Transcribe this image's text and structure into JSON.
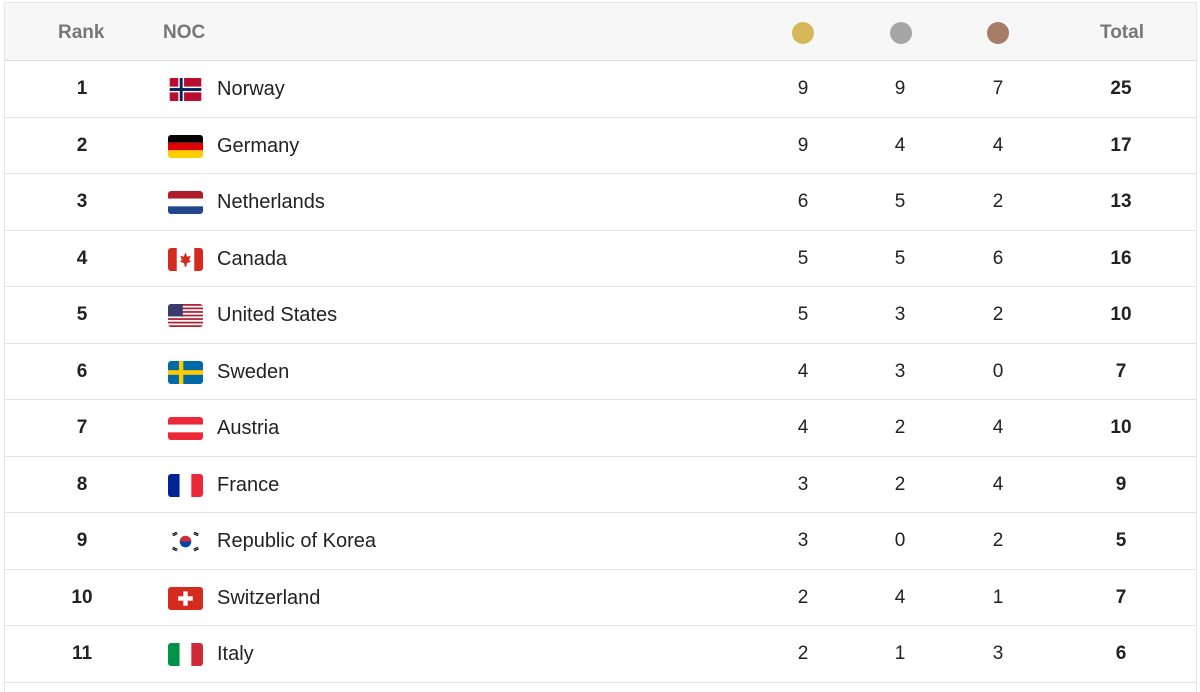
{
  "header": {
    "rank": "Rank",
    "noc": "NOC",
    "gold_icon": "gold-medal-icon",
    "silver_icon": "silver-medal-icon",
    "bronze_icon": "bronze-medal-icon",
    "total": "Total"
  },
  "colors": {
    "gold": "#d6b85a",
    "silver": "#a6a6a6",
    "bronze": "#a67c66"
  },
  "rows": [
    {
      "rank": "1",
      "name": "Norway",
      "flag": "norway-flag-icon",
      "gold": "9",
      "silver": "9",
      "bronze": "7",
      "total": "25"
    },
    {
      "rank": "2",
      "name": "Germany",
      "flag": "germany-flag-icon",
      "gold": "9",
      "silver": "4",
      "bronze": "4",
      "total": "17"
    },
    {
      "rank": "3",
      "name": "Netherlands",
      "flag": "netherlands-flag-icon",
      "gold": "6",
      "silver": "5",
      "bronze": "2",
      "total": "13"
    },
    {
      "rank": "4",
      "name": "Canada",
      "flag": "canada-flag-icon",
      "gold": "5",
      "silver": "5",
      "bronze": "6",
      "total": "16"
    },
    {
      "rank": "5",
      "name": "United States",
      "flag": "united-states-flag-icon",
      "gold": "5",
      "silver": "3",
      "bronze": "2",
      "total": "10"
    },
    {
      "rank": "6",
      "name": "Sweden",
      "flag": "sweden-flag-icon",
      "gold": "4",
      "silver": "3",
      "bronze": "0",
      "total": "7"
    },
    {
      "rank": "7",
      "name": "Austria",
      "flag": "austria-flag-icon",
      "gold": "4",
      "silver": "2",
      "bronze": "4",
      "total": "10"
    },
    {
      "rank": "8",
      "name": "France",
      "flag": "france-flag-icon",
      "gold": "3",
      "silver": "2",
      "bronze": "4",
      "total": "9"
    },
    {
      "rank": "9",
      "name": "Republic of Korea",
      "flag": "korea-flag-icon",
      "gold": "3",
      "silver": "0",
      "bronze": "2",
      "total": "5"
    },
    {
      "rank": "10",
      "name": "Switzerland",
      "flag": "switzerland-flag-icon",
      "gold": "2",
      "silver": "4",
      "bronze": "1",
      "total": "7"
    },
    {
      "rank": "11",
      "name": "Italy",
      "flag": "italy-flag-icon",
      "gold": "2",
      "silver": "1",
      "bronze": "3",
      "total": "6"
    }
  ]
}
